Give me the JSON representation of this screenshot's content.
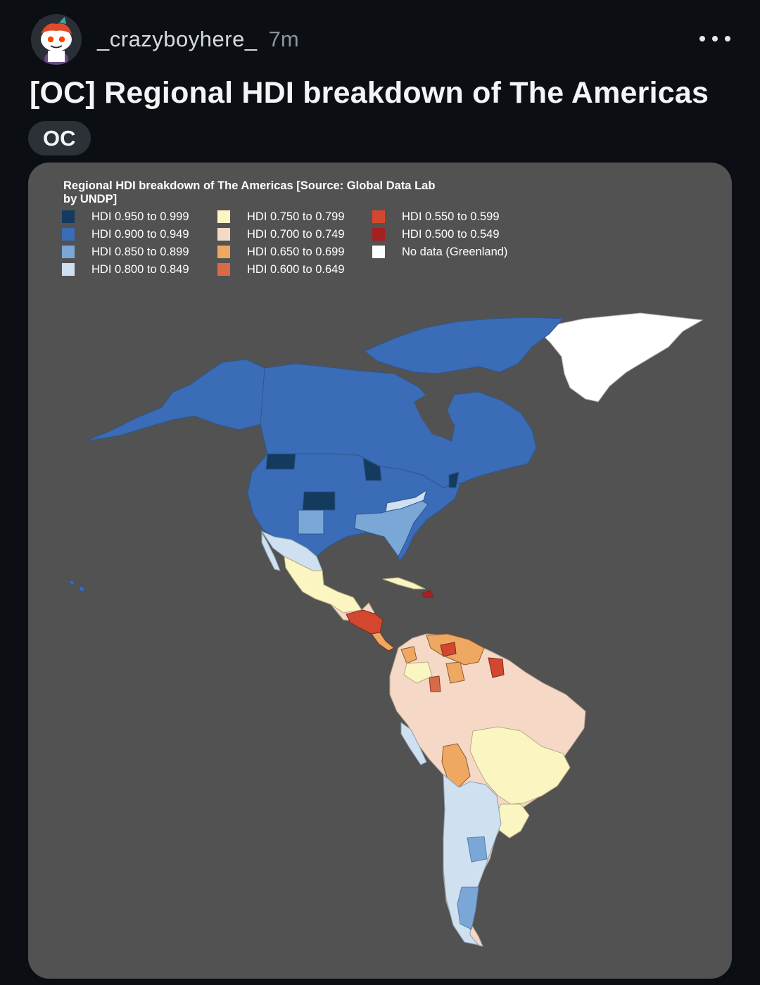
{
  "post": {
    "username": "_crazyboyhere_",
    "time": "7m",
    "title": "[OC] Regional HDI breakdown of The Americas",
    "flair": "OC"
  },
  "icons": {
    "avatar": "reddit-snoo-avatar-icon",
    "more": "more-options-icon"
  },
  "map": {
    "title": "Regional HDI breakdown of The Americas [Source: Global Data Lab by UNDP]",
    "legend": [
      {
        "label": "HDI 0.950 to 0.999",
        "color": "#143a5e"
      },
      {
        "label": "HDI 0.900 to 0.949",
        "color": "#3a6cb7"
      },
      {
        "label": "HDI 0.850 to 0.899",
        "color": "#7ba7d6"
      },
      {
        "label": "HDI 0.800 to 0.849",
        "color": "#cfe0f0"
      },
      {
        "label": "HDI 0.750 to 0.799",
        "color": "#fbf5c2"
      },
      {
        "label": "HDI 0.700 to 0.749",
        "color": "#f5d8c6"
      },
      {
        "label": "HDI 0.650 to 0.699",
        "color": "#eea862"
      },
      {
        "label": "HDI 0.600 to 0.649",
        "color": "#d96a48"
      },
      {
        "label": "HDI 0.550 to 0.599",
        "color": "#d3472f"
      },
      {
        "label": "HDI 0.500 to 0.549",
        "color": "#a51f23"
      },
      {
        "label": "No data (Greenland)",
        "color": "#ffffff"
      }
    ],
    "background": "#525252"
  }
}
